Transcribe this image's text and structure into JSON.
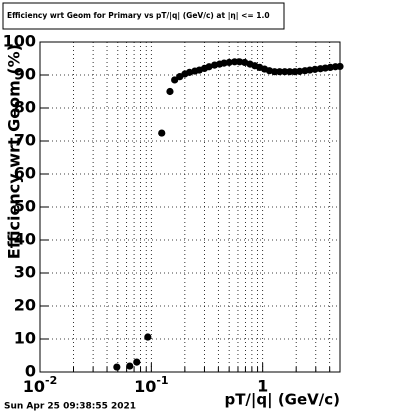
{
  "chart_data": {
    "type": "scatter",
    "title": "Efficiency wrt Geom for Primary vs pT/|q| (GeV/c) at |η| <= 1.0",
    "x_label": "pT/|q| (GeV/c)",
    "y_label": "Efficiency wrt Geom (%)",
    "footer": "Sun Apr 25 09:38:55 2021",
    "x_log": true,
    "grid": true,
    "color": "#000000",
    "xlim": [
      0.01,
      4.95
    ],
    "ylim": [
      0,
      100
    ],
    "xticks": [
      {
        "value": 0.01,
        "label": "10",
        "exponent": "-2"
      },
      {
        "value": 0.1,
        "label": "10",
        "exponent": "-1"
      },
      1
    ],
    "yticks": [
      0,
      10,
      20,
      30,
      40,
      50,
      60,
      70,
      80,
      90,
      100
    ],
    "x": [
      0.049,
      0.064,
      0.074,
      0.093,
      0.124,
      0.147,
      0.162,
      0.18,
      0.2,
      0.22,
      0.246,
      0.27,
      0.3,
      0.33,
      0.37,
      0.41,
      0.45,
      0.5,
      0.56,
      0.62,
      0.69,
      0.77,
      0.85,
      0.94,
      1.04,
      1.15,
      1.28,
      1.42,
      1.58,
      1.75,
      1.95,
      2.15,
      2.4,
      2.65,
      2.95,
      3.3,
      3.65,
      4.05,
      4.5,
      4.95
    ],
    "values": [
      1.5,
      1.8,
      3,
      10.6,
      72.4,
      85,
      88.5,
      89.5,
      90.3,
      90.8,
      91.2,
      91.5,
      92,
      92.5,
      93,
      93.3,
      93.6,
      93.8,
      94,
      94,
      93.8,
      93.3,
      92.8,
      92.3,
      91.8,
      91.3,
      91,
      91,
      91,
      91,
      91,
      91.1,
      91.3,
      91.5,
      91.7,
      91.9,
      92.1,
      92.3,
      92.5,
      92.6
    ]
  }
}
